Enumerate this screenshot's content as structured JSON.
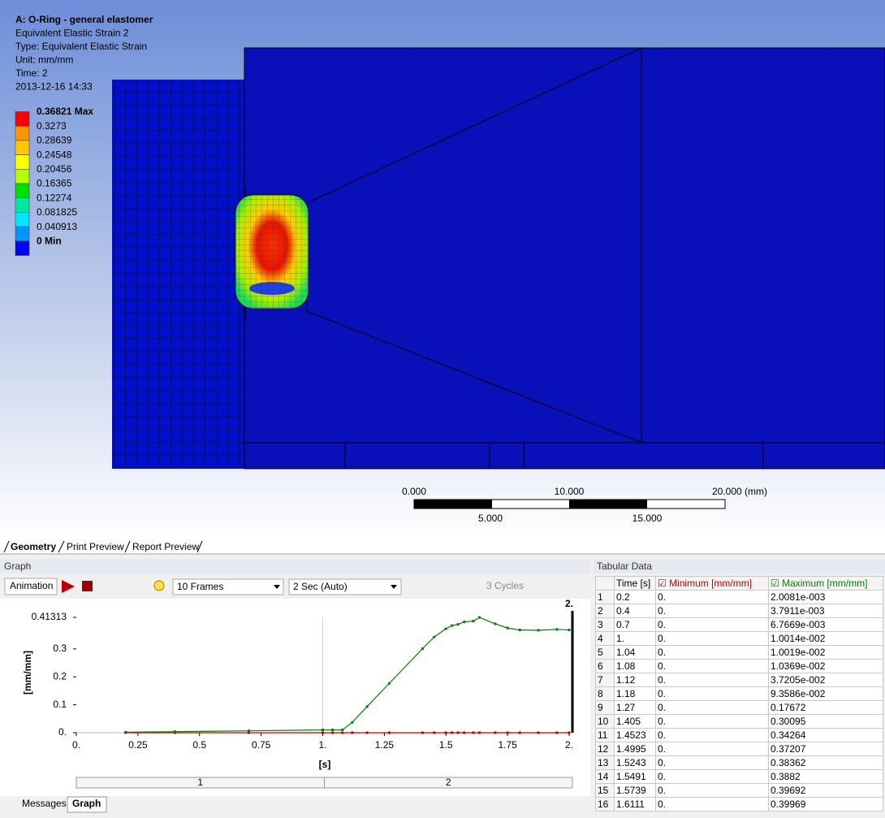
{
  "viewport": {
    "header": [
      "A: O-Ring - general elastomer",
      "Equivalent Elastic Strain 2",
      "Type: Equivalent Elastic Strain",
      "Unit: mm/mm",
      "Time: 2",
      "2013-12-16 14:33"
    ],
    "legend": [
      {
        "label": "0.36821 Max",
        "color": "#ff0000"
      },
      {
        "label": "0.3273",
        "color": "#ff9400"
      },
      {
        "label": "0.28639",
        "color": "#ffc800"
      },
      {
        "label": "0.24548",
        "color": "#ffff00"
      },
      {
        "label": "0.20456",
        "color": "#b4ff00"
      },
      {
        "label": "0.16365",
        "color": "#00e000"
      },
      {
        "label": "0.12274",
        "color": "#00e8a0"
      },
      {
        "label": "0.081825",
        "color": "#00e8ff"
      },
      {
        "label": "0.040913",
        "color": "#0096ff"
      },
      {
        "label": "0 Min",
        "color": "#0000ff"
      }
    ],
    "scale": {
      "top": [
        "0.000",
        "10.000",
        "20.000 (mm)"
      ],
      "bottom": [
        "5.000",
        "15.000"
      ]
    }
  },
  "tabs": [
    "Geometry",
    "Print Preview",
    "Report Preview"
  ],
  "graph_panel": {
    "title": "Graph",
    "toolbar": {
      "animation": "Animation",
      "frames": "10 Frames",
      "duration": "2 Sec (Auto)",
      "cycles": "3 Cycles"
    },
    "marker_label": "2.",
    "steps": [
      "1",
      "2"
    ]
  },
  "chart_data": {
    "type": "line",
    "x_label": "[s]",
    "y_label": "[mm/mm]",
    "x": [
      0.2,
      0.4,
      0.7,
      1,
      1.04,
      1.08,
      1.12,
      1.18,
      1.27,
      1.405,
      1.4523,
      1.4995,
      1.5243,
      1.5491,
      1.5739,
      1.6111,
      1.6361,
      1.7,
      1.75,
      1.8,
      1.875,
      1.95,
      2
    ],
    "series": [
      {
        "name": "Minimum [mm/mm]",
        "color": "#c00000",
        "values": [
          0,
          0,
          0,
          0,
          0,
          0,
          0,
          0,
          0,
          0,
          0,
          0,
          0,
          0,
          0,
          0,
          0,
          0,
          0,
          0,
          0,
          0,
          0
        ]
      },
      {
        "name": "Maximum [mm/mm]",
        "color": "#008000",
        "values": [
          0.0020081,
          0.0037911,
          0.0067669,
          0.010014,
          0.010019,
          0.010369,
          0.037205,
          0.093586,
          0.17672,
          0.30095,
          0.34264,
          0.37207,
          0.38362,
          0.3882,
          0.39692,
          0.39969,
          0.41313,
          0.39,
          0.375,
          0.368,
          0.367,
          0.37,
          0.36821
        ]
      }
    ],
    "xlim": [
      0,
      2
    ],
    "ylim": [
      0,
      0.41313
    ],
    "xticks": [
      {
        "value": 0,
        "label": "0."
      },
      0.25,
      0.5,
      0.75,
      {
        "value": 1,
        "label": "1."
      },
      1.25,
      1.5,
      1.75,
      {
        "value": 2,
        "label": "2."
      }
    ],
    "yticks": [
      {
        "value": 0,
        "label": "0."
      },
      0.1,
      0.2,
      0.3,
      0.41313
    ]
  },
  "table": {
    "title": "Tabular Data",
    "time_header": "Time [s]",
    "rows": [
      [
        "1",
        "0.2",
        "0.",
        "2.0081e-003"
      ],
      [
        "2",
        "0.4",
        "0.",
        "3.7911e-003"
      ],
      [
        "3",
        "0.7",
        "0.",
        "6.7669e-003"
      ],
      [
        "4",
        "1.",
        "0.",
        "1.0014e-002"
      ],
      [
        "5",
        "1.04",
        "0.",
        "1.0019e-002"
      ],
      [
        "6",
        "1.08",
        "0.",
        "1.0369e-002"
      ],
      [
        "7",
        "1.12",
        "0.",
        "3.7205e-002"
      ],
      [
        "8",
        "1.18",
        "0.",
        "9.3586e-002"
      ],
      [
        "9",
        "1.27",
        "0.",
        "0.17672"
      ],
      [
        "10",
        "1.405",
        "0.",
        "0.30095"
      ],
      [
        "11",
        "1.4523",
        "0.",
        "0.34264"
      ],
      [
        "12",
        "1.4995",
        "0.",
        "0.37207"
      ],
      [
        "13",
        "1.5243",
        "0.",
        "0.38362"
      ],
      [
        "14",
        "1.5491",
        "0.",
        "0.3882"
      ],
      [
        "15",
        "1.5739",
        "0.",
        "0.39692"
      ],
      [
        "16",
        "1.6111",
        "0.",
        "0.39969"
      ]
    ]
  },
  "bottom_tabs": [
    "Messages",
    "Graph"
  ]
}
